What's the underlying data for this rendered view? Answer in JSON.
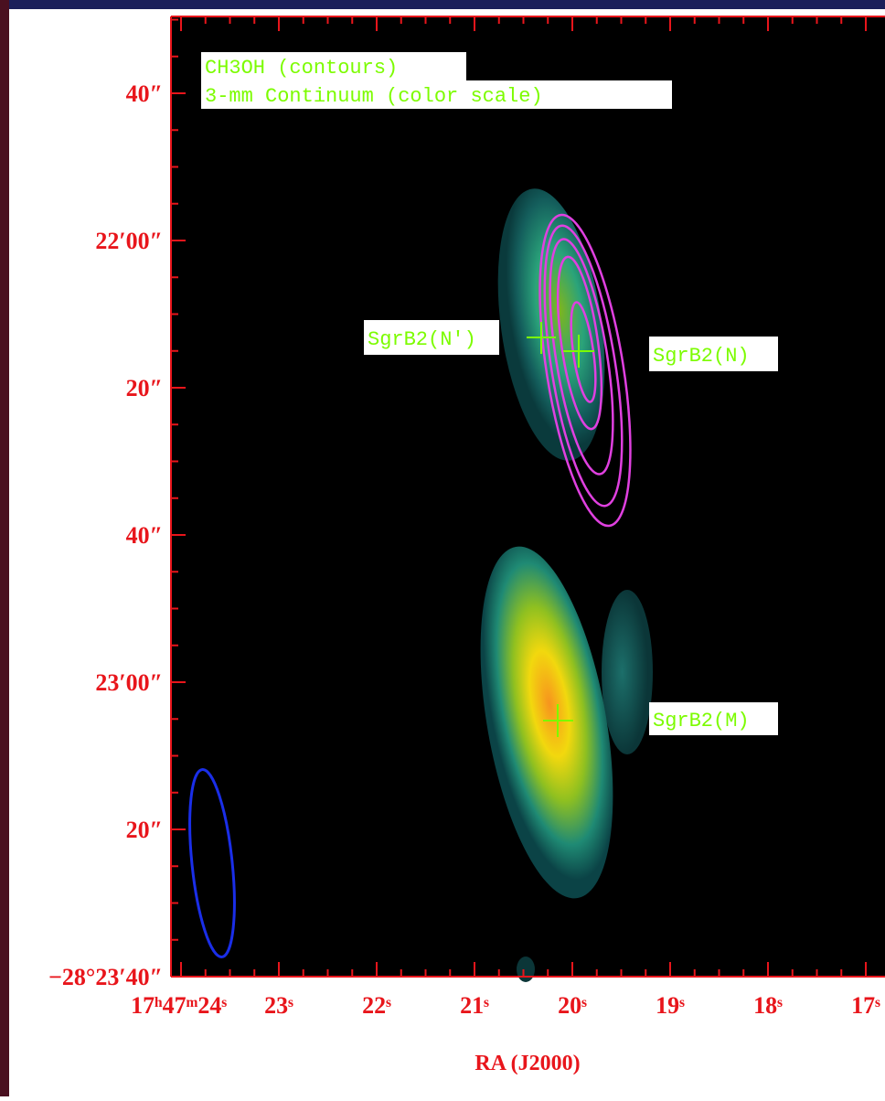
{
  "legend": [
    "CH3OH (contours)",
    "3-mm Continuum (color scale)"
  ],
  "x_axis": {
    "label": "RA (J2000)",
    "ticks": [
      "17ʰ47ᵐ24ˢ",
      "23ˢ",
      "22ˢ",
      "21ˢ",
      "20ˢ",
      "19ˢ",
      "18ˢ",
      "17ˢ"
    ]
  },
  "y_axis": {
    "ticks": [
      "40″",
      "22′00″",
      "20″",
      "40″",
      "23′00″",
      "20″",
      "−28°23′40″"
    ]
  },
  "sources": [
    "SgrB2(N′)",
    "SgrB2(N)",
    "SgrB2(M)"
  ]
}
